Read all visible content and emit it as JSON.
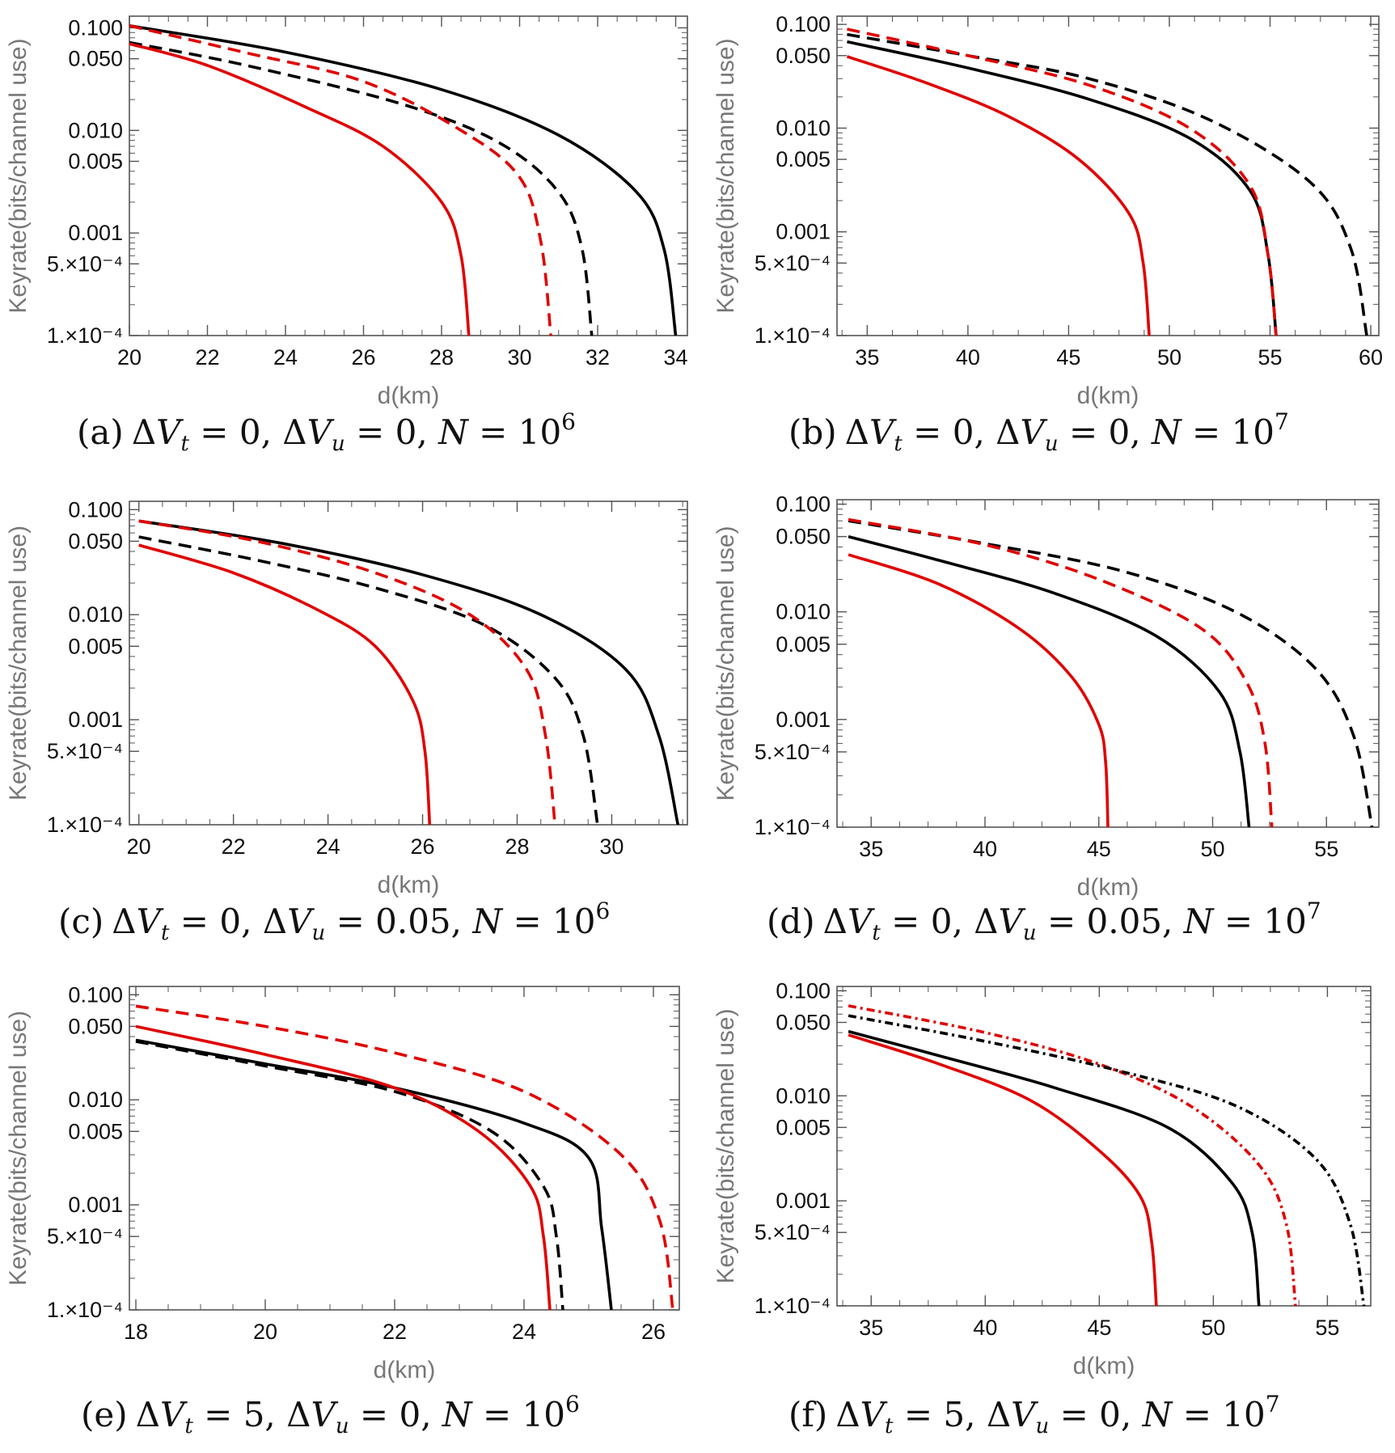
{
  "figure": {
    "panels": [
      {
        "id": "a",
        "caption": {
          "label": "(a)",
          "dvt": "0",
          "dvu": "0",
          "n_exp": "6"
        },
        "chart_data": {
          "type": "line",
          "xlabel": "d(km)",
          "ylabel": "Keyrate(bits/channel use)",
          "xlim": [
            20,
            34.3
          ],
          "ylim": [
            0.0001,
            0.13
          ],
          "yscale": "log",
          "xticks": [
            20,
            22,
            24,
            26,
            28,
            30,
            32,
            34
          ],
          "yticks": [
            "0.100",
            "0.050",
            "0.010",
            "0.005",
            "0.001",
            "5.×10⁻⁴",
            "1.×10⁻⁴"
          ],
          "ytick_values": [
            0.1,
            0.05,
            0.01,
            0.005,
            0.001,
            0.0005,
            0.0001
          ],
          "series": [
            {
              "color": "#000000",
              "dash": "solid",
              "x": [
                20,
                24,
                28,
                31,
                33,
                33.7,
                34.0
              ],
              "y": [
                0.105,
                0.058,
                0.025,
                0.009,
                0.0025,
                0.0007,
                0.0001
              ]
            },
            {
              "color": "#000000",
              "dash": "dashed",
              "x": [
                20,
                23,
                27,
                29.5,
                31,
                31.6,
                31.85
              ],
              "y": [
                0.072,
                0.043,
                0.018,
                0.0075,
                0.0025,
                0.0007,
                0.0001
              ]
            },
            {
              "color": "#e00000",
              "dash": "dashed",
              "x": [
                20,
                23,
                26,
                28.5,
                30,
                30.55,
                30.8
              ],
              "y": [
                0.105,
                0.057,
                0.03,
                0.01,
                0.0035,
                0.0008,
                0.0001
              ]
            },
            {
              "color": "#e00000",
              "dash": "solid",
              "x": [
                20,
                22,
                24.5,
                26.5,
                28,
                28.5,
                28.7
              ],
              "y": [
                0.07,
                0.043,
                0.017,
                0.007,
                0.002,
                0.0006,
                0.0001
              ]
            }
          ]
        }
      },
      {
        "id": "b",
        "caption": {
          "label": "(b)",
          "dvt": "0",
          "dvu": "0",
          "n_exp": "7"
        },
        "chart_data": {
          "type": "line",
          "xlabel": "d(km)",
          "ylabel": "Keyrate(bits/channel use)",
          "xlim": [
            33.5,
            60.4
          ],
          "ylim": [
            0.0001,
            0.12
          ],
          "yscale": "log",
          "xticks": [
            35,
            40,
            45,
            50,
            55,
            60
          ],
          "yticks": [
            "0.100",
            "0.050",
            "0.010",
            "0.005",
            "0.001",
            "5.×10⁻⁴",
            "1.×10⁻⁴"
          ],
          "ytick_values": [
            0.1,
            0.05,
            0.01,
            0.005,
            0.001,
            0.0005,
            0.0001
          ],
          "series": [
            {
              "color": "#000000",
              "dash": "dashed",
              "x": [
                34,
                40,
                46,
                52,
                57,
                59,
                59.8
              ],
              "y": [
                0.08,
                0.05,
                0.03,
                0.012,
                0.003,
                0.0007,
                0.0001
              ]
            },
            {
              "color": "#000000",
              "dash": "solid",
              "x": [
                34,
                40,
                46,
                51,
                54,
                54.9,
                55.3
              ],
              "y": [
                0.068,
                0.038,
                0.019,
                0.008,
                0.0025,
                0.0006,
                0.0001
              ]
            },
            {
              "color": "#e00000",
              "dash": "dashed",
              "x": [
                34,
                40,
                46,
                51,
                54,
                54.9,
                55.3
              ],
              "y": [
                0.09,
                0.05,
                0.026,
                0.01,
                0.0028,
                0.0006,
                0.0001
              ]
            },
            {
              "color": "#e00000",
              "dash": "solid",
              "x": [
                34,
                38,
                42,
                45.5,
                48,
                48.7,
                49.0
              ],
              "y": [
                0.049,
                0.027,
                0.013,
                0.005,
                0.0015,
                0.0005,
                0.0001
              ]
            }
          ]
        }
      },
      {
        "id": "c",
        "caption": {
          "label": "(c)",
          "dvt": "0",
          "dvu": "0.05",
          "n_exp": "6"
        },
        "chart_data": {
          "type": "line",
          "xlabel": "d(km)",
          "ylabel": "Keyrate(bits/channel use)",
          "xlim": [
            19.8,
            31.6
          ],
          "ylim": [
            0.0001,
            0.12
          ],
          "yscale": "log",
          "xticks": [
            20,
            22,
            24,
            26,
            28,
            30
          ],
          "yticks": [
            "0.100",
            "0.050",
            "0.010",
            "0.005",
            "0.001",
            "5.×10⁻⁴",
            "1.×10⁻⁴"
          ],
          "ytick_values": [
            0.1,
            0.05,
            0.01,
            0.005,
            0.001,
            0.0005,
            0.0001
          ],
          "series": [
            {
              "color": "#000000",
              "dash": "solid",
              "x": [
                20,
                23,
                26,
                28.5,
                30.3,
                31.0,
                31.4
              ],
              "y": [
                0.078,
                0.048,
                0.024,
                0.01,
                0.003,
                0.0007,
                0.0001
              ]
            },
            {
              "color": "#000000",
              "dash": "dashed",
              "x": [
                20,
                22.5,
                25,
                27.3,
                28.8,
                29.4,
                29.7
              ],
              "y": [
                0.055,
                0.033,
                0.018,
                0.008,
                0.0025,
                0.0007,
                0.0001
              ]
            },
            {
              "color": "#e00000",
              "dash": "dashed",
              "x": [
                20,
                22.5,
                25,
                27,
                28.2,
                28.6,
                28.8
              ],
              "y": [
                0.078,
                0.05,
                0.025,
                0.01,
                0.003,
                0.0007,
                0.0001
              ]
            },
            {
              "color": "#e00000",
              "dash": "solid",
              "x": [
                20,
                22,
                23.8,
                25,
                25.8,
                26.05,
                26.15
              ],
              "y": [
                0.046,
                0.025,
                0.011,
                0.005,
                0.0015,
                0.0005,
                0.0001
              ]
            }
          ]
        }
      },
      {
        "id": "d",
        "caption": {
          "label": "(d)",
          "dvt": "0",
          "dvu": "0.05",
          "n_exp": "7"
        },
        "chart_data": {
          "type": "line",
          "xlabel": "d(km)",
          "ylabel": "Keyrate(bits/channel use)",
          "xlim": [
            33.5,
            57.3
          ],
          "ylim": [
            0.0001,
            0.11
          ],
          "yscale": "log",
          "xticks": [
            35,
            40,
            45,
            50,
            55
          ],
          "yticks": [
            "0.100",
            "0.050",
            "0.010",
            "0.005",
            "0.001",
            "5.×10⁻⁴",
            "1.×10⁻⁴"
          ],
          "ytick_values": [
            0.1,
            0.05,
            0.01,
            0.005,
            0.001,
            0.0005,
            0.0001
          ],
          "series": [
            {
              "color": "#000000",
              "dash": "dashed",
              "x": [
                34,
                40,
                46,
                51,
                54.5,
                56.2,
                57.0
              ],
              "y": [
                0.07,
                0.043,
                0.024,
                0.01,
                0.003,
                0.0007,
                0.0001
              ]
            },
            {
              "color": "#000000",
              "dash": "solid",
              "x": [
                34,
                38,
                43,
                47.5,
                50.3,
                51.2,
                51.6
              ],
              "y": [
                0.05,
                0.03,
                0.015,
                0.006,
                0.0018,
                0.0005,
                0.0001
              ]
            },
            {
              "color": "#e00000",
              "dash": "dashed",
              "x": [
                34,
                40,
                45,
                49.5,
                51.5,
                52.3,
                52.6
              ],
              "y": [
                0.072,
                0.042,
                0.02,
                0.007,
                0.0022,
                0.0006,
                0.0001
              ]
            },
            {
              "color": "#e00000",
              "dash": "solid",
              "x": [
                34,
                38,
                41.5,
                43.8,
                45.0,
                45.3,
                45.4
              ],
              "y": [
                0.034,
                0.018,
                0.007,
                0.0025,
                0.0009,
                0.0004,
                0.0001
              ]
            }
          ]
        }
      },
      {
        "id": "e",
        "caption": {
          "label": "(e)",
          "dvt": "5",
          "dvu": "0",
          "n_exp": "6"
        },
        "chart_data": {
          "type": "line",
          "xlabel": "d(km)",
          "ylabel": "Keyrate(bits/channel use)",
          "xlim": [
            17.9,
            26.4
          ],
          "ylim": [
            0.0001,
            0.12
          ],
          "yscale": "log",
          "xticks": [
            18,
            20,
            22,
            24,
            26
          ],
          "yticks": [
            "0.100",
            "0.050",
            "0.010",
            "0.005",
            "0.001",
            "5.×10⁻⁴",
            "1.×10⁻⁴"
          ],
          "ytick_values": [
            0.1,
            0.05,
            0.01,
            0.005,
            0.001,
            0.0005,
            0.0001
          ],
          "series": [
            {
              "color": "#e00000",
              "dash": "dashed",
              "x": [
                18,
                20,
                22,
                24,
                25.5,
                26.1,
                26.3
              ],
              "y": [
                0.078,
                0.05,
                0.028,
                0.012,
                0.003,
                0.0007,
                0.0001
              ]
            },
            {
              "color": "#000000",
              "dash": "solid",
              "x": [
                18,
                20,
                22,
                24,
                25,
                25.2,
                25.35
              ],
              "y": [
                0.037,
                0.022,
                0.013,
                0.006,
                0.0028,
                0.0006,
                0.0001
              ]
            },
            {
              "color": "#000000",
              "dash": "dashed",
              "x": [
                18,
                20,
                22,
                23.5,
                24.3,
                24.5,
                24.6
              ],
              "y": [
                0.036,
                0.021,
                0.012,
                0.005,
                0.0015,
                0.0005,
                0.0001
              ]
            },
            {
              "color": "#e00000",
              "dash": "solid",
              "x": [
                18,
                20,
                22,
                23.3,
                24.1,
                24.3,
                24.4
              ],
              "y": [
                0.05,
                0.027,
                0.013,
                0.005,
                0.0015,
                0.0005,
                0.0001
              ]
            }
          ]
        }
      },
      {
        "id": "f",
        "caption": {
          "label": "(f)",
          "dvt": "5",
          "dvu": "0",
          "n_exp": "7"
        },
        "chart_data": {
          "type": "line",
          "xlabel": "d(km)",
          "ylabel": "Keyrate(bits/channel use)",
          "xlim": [
            33.5,
            56.9
          ],
          "ylim": [
            0.0001,
            0.11
          ],
          "yscale": "log",
          "xticks": [
            35,
            40,
            45,
            50,
            55
          ],
          "yticks": [
            "0.100",
            "0.050",
            "0.010",
            "0.005",
            "0.001",
            "5.×10⁻⁴",
            "1.×10⁻⁴"
          ],
          "ytick_values": [
            0.1,
            0.05,
            0.01,
            0.005,
            0.001,
            0.0005,
            0.0001
          ],
          "series": [
            {
              "color": "#e00000",
              "dash": "dotdash",
              "x": [
                34,
                40,
                45,
                49,
                52,
                53.2,
                53.6
              ],
              "y": [
                0.072,
                0.04,
                0.02,
                0.008,
                0.0022,
                0.0006,
                0.0001
              ]
            },
            {
              "color": "#000000",
              "dash": "dotdash",
              "x": [
                34,
                40,
                46,
                51,
                54.5,
                56.0,
                56.6
              ],
              "y": [
                0.058,
                0.033,
                0.017,
                0.008,
                0.0025,
                0.0006,
                0.0001
              ]
            },
            {
              "color": "#000000",
              "dash": "solid",
              "x": [
                34,
                38,
                43,
                48,
                50.8,
                51.7,
                52.0
              ],
              "y": [
                0.041,
                0.024,
                0.012,
                0.005,
                0.0015,
                0.0005,
                0.0001
              ]
            },
            {
              "color": "#e00000",
              "dash": "solid",
              "x": [
                34,
                38,
                42,
                45,
                46.8,
                47.3,
                47.5
              ],
              "y": [
                0.038,
                0.02,
                0.009,
                0.003,
                0.0011,
                0.0004,
                0.0001
              ]
            }
          ]
        }
      }
    ]
  }
}
